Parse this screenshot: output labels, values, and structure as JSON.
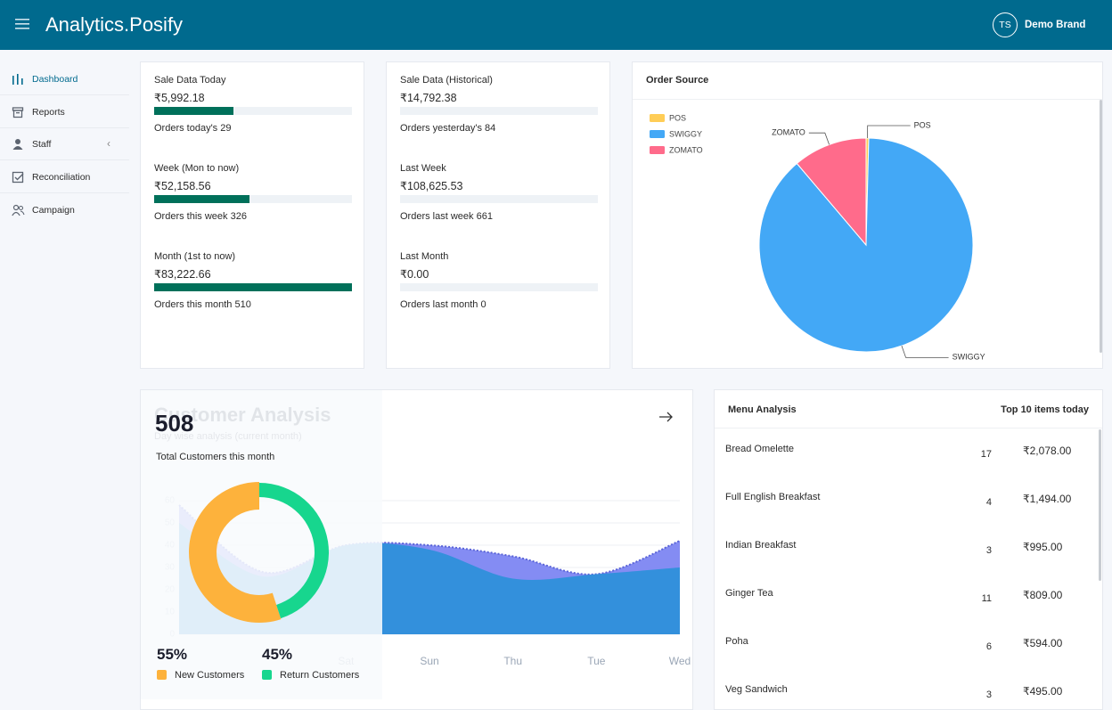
{
  "header": {
    "brand": "Analytics.Posify",
    "avatar": "TS",
    "user": "Demo Brand"
  },
  "sidebar": {
    "items": [
      "Dashboard",
      "Reports",
      "Staff",
      "Reconciliation",
      "Campaign"
    ],
    "active": 0
  },
  "sale_today": {
    "rows": [
      {
        "label": "Sale Data Today",
        "amount": "₹5,992.18",
        "progress": 40,
        "orders": "Orders today's 29"
      },
      {
        "label": "Week (Mon to now)",
        "amount": "₹52,158.56",
        "progress": 48,
        "orders": "Orders this week 326"
      },
      {
        "label": "Month (1st to now)",
        "amount": "₹83,222.66",
        "progress": 100,
        "orders": "Orders this month 510"
      }
    ]
  },
  "sale_historical": {
    "rows": [
      {
        "label": "Sale Data (Historical)",
        "amount": "₹14,792.38",
        "progress": 0,
        "orders": "Orders yesterday's 84"
      },
      {
        "label": "Last Week",
        "amount": "₹108,625.53",
        "progress": 0,
        "orders": "Orders last week 661"
      },
      {
        "label": "Last Month",
        "amount": "₹0.00",
        "progress": 0,
        "orders": "Orders last month 0"
      }
    ]
  },
  "order_source": {
    "title": "Order Source",
    "chart_data": {
      "type": "pie",
      "categories": [
        "POS",
        "SWIGGY",
        "ZOMATO"
      ],
      "values": [
        0.4,
        88.4,
        11.2
      ],
      "colors": [
        "#ffcd56",
        "#43a8f6",
        "#ff6b8b"
      ]
    }
  },
  "customer_analysis": {
    "title": "Customer Analysis",
    "subtitle": "Day wise analysis (current month)",
    "total": 508,
    "total_label": "Total Customers this month",
    "donut": {
      "type": "doughnut",
      "categories": [
        "New Customers",
        "Return Customers"
      ],
      "values": [
        55,
        45
      ],
      "value_labels": [
        "55%",
        "45%"
      ],
      "colors": [
        "#fdb23c",
        "#17d68e"
      ]
    },
    "area": {
      "type": "area",
      "categories": [
        null,
        null,
        "Sat",
        "Sun",
        "Thu",
        "Tue",
        "Wed"
      ],
      "series": [
        {
          "color": "#7d86f2",
          "values": [
            58,
            28,
            40,
            40,
            35,
            27,
            42
          ]
        },
        {
          "color": "#2e90da",
          "values": [
            50,
            26,
            40,
            38,
            25,
            27,
            30
          ]
        }
      ],
      "ylim": [
        0,
        60
      ],
      "yticks": [
        0,
        10,
        20,
        30,
        40,
        50,
        60
      ]
    }
  },
  "menu_analysis": {
    "title": "Menu Analysis",
    "subtitle": "Top 10 items today",
    "rows": [
      {
        "name": "Bread Omelette",
        "qty": 17,
        "amount": "₹2,078.00"
      },
      {
        "name": "Full English Breakfast",
        "qty": 4,
        "amount": "₹1,494.00"
      },
      {
        "name": "Indian Breakfast",
        "qty": 3,
        "amount": "₹995.00"
      },
      {
        "name": "Ginger Tea",
        "qty": 11,
        "amount": "₹809.00"
      },
      {
        "name": "Poha",
        "qty": 6,
        "amount": "₹594.00"
      },
      {
        "name": "Veg Sandwich",
        "qty": 3,
        "amount": "₹495.00"
      }
    ]
  }
}
